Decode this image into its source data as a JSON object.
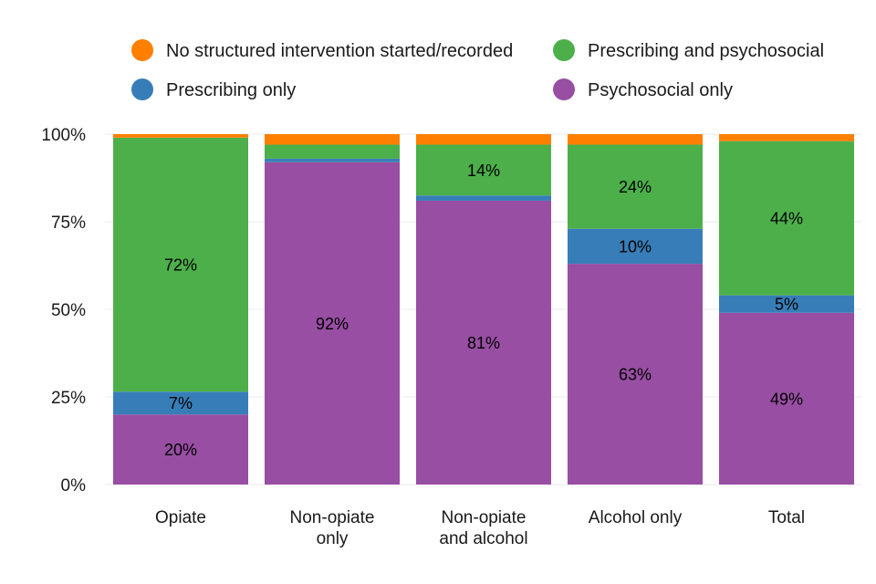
{
  "chart_data": {
    "type": "bar",
    "stacked": true,
    "categories": [
      [
        "Opiate"
      ],
      [
        "Non-opiate",
        "only"
      ],
      [
        "Non-opiate",
        "and alcohol"
      ],
      [
        "Alcohol only"
      ],
      [
        "Total"
      ]
    ],
    "ylim": [
      0,
      100
    ],
    "yticks": [
      0,
      25,
      50,
      75,
      100
    ],
    "ytick_labels": [
      "0%",
      "25%",
      "50%",
      "75%",
      "100%"
    ],
    "grid": true,
    "legend_position": "top",
    "series": [
      {
        "name": "Psychosocial only",
        "color": "#984EA3",
        "values": [
          20,
          92,
          81,
          63,
          49
        ],
        "labels": [
          "20%",
          "92%",
          "81%",
          "63%",
          "49%"
        ]
      },
      {
        "name": "Prescribing only",
        "color": "#377EB8",
        "values": [
          6.5,
          1,
          1.5,
          10,
          5
        ],
        "labels": [
          "7%",
          "",
          "",
          "10%",
          "5%"
        ]
      },
      {
        "name": "Prescribing and psychosocial",
        "color": "#4DAF4A",
        "values": [
          72.5,
          4,
          14.5,
          24,
          44
        ],
        "labels": [
          "72%",
          "",
          "14%",
          "24%",
          "44%"
        ]
      },
      {
        "name": "No structured intervention started/recorded",
        "color": "#FF7F00",
        "values": [
          1,
          3,
          3,
          3,
          2
        ],
        "labels": [
          "",
          "",
          "",
          "",
          ""
        ]
      }
    ],
    "legend_order": [
      "No structured intervention started/recorded",
      "Prescribing and psychosocial",
      "Prescribing only",
      "Psychosocial only"
    ]
  }
}
